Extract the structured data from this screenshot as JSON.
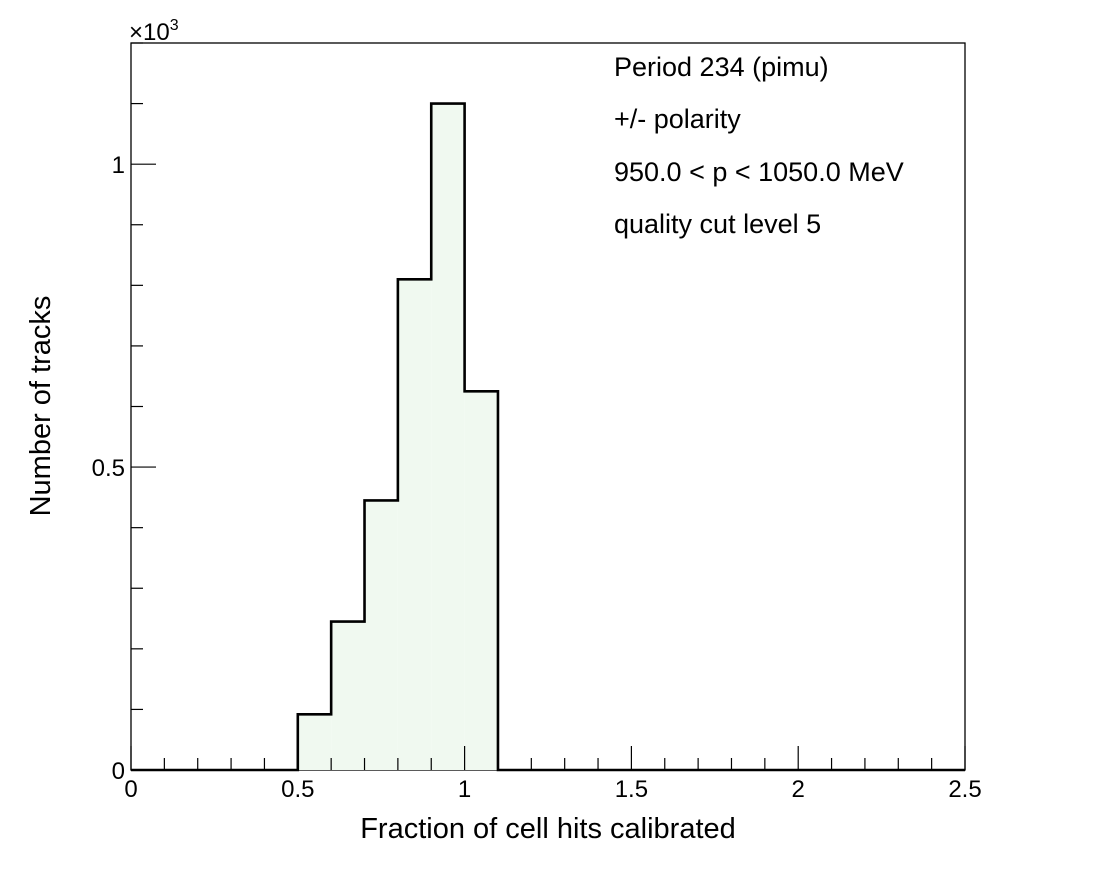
{
  "chart_data": {
    "type": "bar",
    "xlabel": "Fraction of cell hits calibrated",
    "ylabel": "Number of tracks",
    "y_multiplier_label": "×10",
    "y_multiplier_exponent": "3",
    "xlim": [
      0,
      2.5
    ],
    "ylim": [
      0,
      1.2
    ],
    "grid": false,
    "x_ticks": [
      0,
      0.5,
      1,
      1.5,
      2,
      2.5
    ],
    "x_tick_labels": [
      "0",
      "0.5",
      "1",
      "1.5",
      "2",
      "2.5"
    ],
    "y_ticks": [
      0,
      0.5,
      1
    ],
    "y_tick_labels": [
      "0",
      "0.5",
      "1"
    ],
    "bin_edges": [
      0,
      0.1,
      0.2,
      0.3,
      0.4,
      0.5,
      0.6,
      0.7,
      0.8,
      0.9,
      1.0,
      1.1,
      1.2,
      1.3,
      1.4,
      1.5,
      1.6,
      1.7,
      1.8,
      1.9,
      2.0,
      2.1,
      2.2,
      2.3,
      2.4,
      2.5
    ],
    "values": [
      0,
      0,
      0,
      0,
      0,
      0.092,
      0.245,
      0.445,
      0.81,
      1.1,
      0.625,
      0,
      0,
      0,
      0,
      0,
      0,
      0,
      0,
      0,
      0,
      0,
      0,
      0,
      0
    ],
    "fill_color": "#f0f9f0",
    "line_color": "#000000",
    "annotations": [
      "Period 234 (pimu)",
      "+/- polarity",
      "950.0 < p < 1050.0 MeV",
      "quality cut level 5"
    ]
  }
}
